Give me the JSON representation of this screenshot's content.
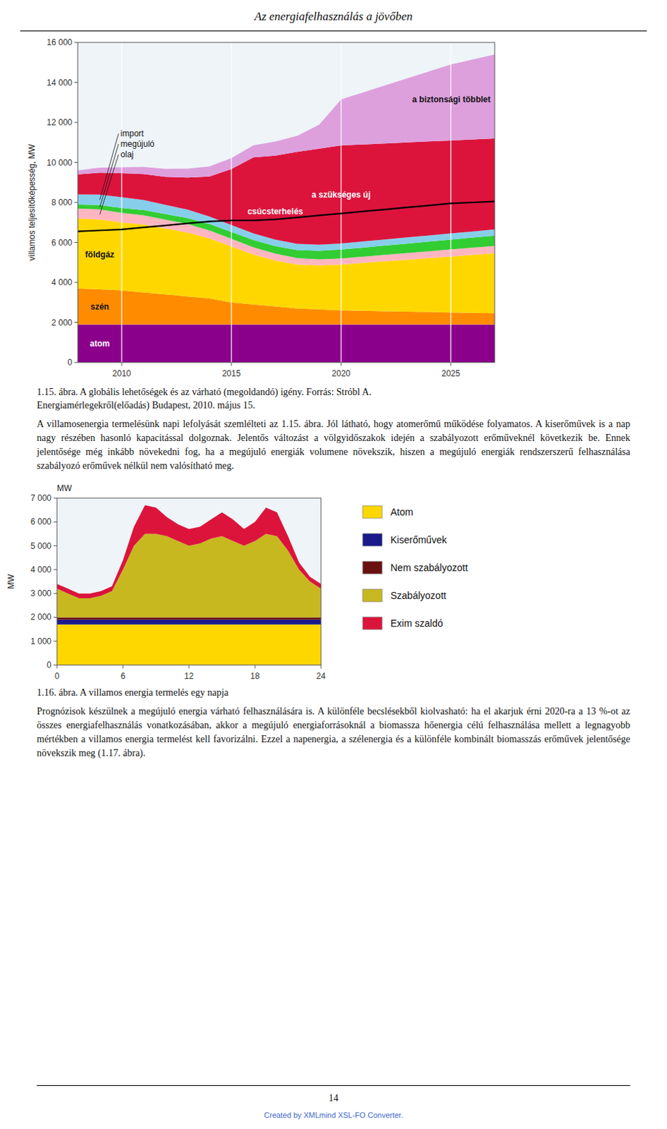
{
  "page_title": "Az energiafelhasználás a jövőben",
  "chart_data": [
    {
      "type": "area",
      "stacked": true,
      "x": [
        2008,
        2009,
        2010,
        2011,
        2012,
        2013,
        2014,
        2015,
        2016,
        2017,
        2018,
        2019,
        2020,
        2021,
        2022,
        2023,
        2024,
        2025,
        2026,
        2027
      ],
      "xlim": [
        2008,
        2027
      ],
      "xticks": [
        2010,
        2015,
        2020,
        2025
      ],
      "ylim": [
        0,
        16000
      ],
      "yticks": [
        0,
        {
          "value": 2000,
          "label": "2 000"
        },
        {
          "value": 4000,
          "label": "4 000"
        },
        {
          "value": 6000,
          "label": "6 000"
        },
        {
          "value": 8000,
          "label": "8 000"
        },
        {
          "value": 10000,
          "label": "10 000"
        },
        {
          "value": 12000,
          "label": "12 000"
        },
        {
          "value": 14000,
          "label": "14 000"
        },
        {
          "value": 16000,
          "label": "16 000"
        }
      ],
      "ylabel": "villamos teljesítőképesség, MW",
      "grid": "x",
      "series": [
        {
          "name": "atom",
          "type": "area",
          "color": "#8B008B",
          "values": [
            1900,
            1900,
            1900,
            1900,
            1900,
            1900,
            1900,
            1900,
            1900,
            1900,
            1900,
            1900,
            1900,
            1900,
            1900,
            1900,
            1900,
            1900,
            1900,
            1900
          ]
        },
        {
          "name": "szén",
          "type": "area",
          "color": "#FF8C00",
          "values": [
            1800,
            1750,
            1700,
            1600,
            1500,
            1400,
            1300,
            1100,
            1000,
            900,
            800,
            750,
            700,
            680,
            660,
            640,
            620,
            600,
            580,
            560
          ]
        },
        {
          "name": "földgáz",
          "type": "area",
          "color": "#FFD700",
          "values": [
            3500,
            3500,
            3400,
            3400,
            3300,
            3200,
            3000,
            2800,
            2500,
            2300,
            2200,
            2200,
            2300,
            2400,
            2500,
            2600,
            2700,
            2800,
            2900,
            3000
          ]
        },
        {
          "name": "olaj",
          "type": "area",
          "color": "#FFB6C1",
          "values": [
            500,
            500,
            480,
            460,
            440,
            420,
            400,
            380,
            360,
            340,
            320,
            310,
            300,
            310,
            320,
            330,
            340,
            350,
            360,
            370
          ]
        },
        {
          "name": "megújuló",
          "type": "area",
          "color": "#32CD32",
          "values": [
            200,
            220,
            240,
            260,
            280,
            300,
            320,
            340,
            360,
            380,
            400,
            420,
            440,
            450,
            460,
            470,
            480,
            490,
            500,
            510
          ]
        },
        {
          "name": "import",
          "type": "area",
          "color": "#87CEEB",
          "values": [
            500,
            520,
            540,
            500,
            460,
            420,
            380,
            350,
            330,
            320,
            310,
            310,
            310,
            310,
            310,
            310,
            310,
            310,
            310,
            310
          ]
        },
        {
          "name": "a szükséges új",
          "type": "area",
          "color": "#DC143C",
          "values": [
            1000,
            1100,
            1200,
            1300,
            1400,
            1600,
            2000,
            2800,
            3800,
            4200,
            4600,
            4800,
            4900,
            4850,
            4800,
            4750,
            4700,
            4650,
            4600,
            4550
          ]
        },
        {
          "name": "a biztonsági többlet",
          "type": "area",
          "color": "#DDA0DD",
          "values": [
            200,
            250,
            300,
            350,
            400,
            450,
            500,
            550,
            600,
            700,
            800,
            1200,
            2300,
            2600,
            2900,
            3200,
            3500,
            3800,
            4000,
            4200
          ]
        },
        {
          "name": "csúcsterhelés",
          "type": "line",
          "color": "#000000",
          "values": [
            6550,
            6600,
            6650,
            6750,
            6850,
            6950,
            7050,
            7100,
            7100,
            7150,
            7250,
            7350,
            7450,
            7550,
            7650,
            7750,
            7850,
            7950,
            8000,
            8050
          ]
        }
      ]
    },
    {
      "type": "area",
      "stacked": true,
      "x": [
        0,
        1,
        2,
        3,
        4,
        5,
        6,
        7,
        8,
        9,
        10,
        11,
        12,
        13,
        14,
        15,
        16,
        17,
        18,
        19,
        20,
        21,
        22,
        23,
        24
      ],
      "xlim": [
        0,
        24
      ],
      "xticks": [
        0,
        6,
        12,
        18,
        24
      ],
      "ylim": [
        0,
        7000
      ],
      "yticks": [
        0,
        {
          "value": 1000,
          "label": "1 000"
        },
        {
          "value": 2000,
          "label": "2 000"
        },
        {
          "value": 3000,
          "label": "3 000"
        },
        {
          "value": 4000,
          "label": "4 000"
        },
        {
          "value": 5000,
          "label": "5 000"
        },
        {
          "value": 6000,
          "label": "6 000"
        },
        {
          "value": 7000,
          "label": "7 000"
        }
      ],
      "ylabel": "MW",
      "legend": "right",
      "series": [
        {
          "name": "Atom",
          "type": "area",
          "color": "#FFD700",
          "values": [
            1700,
            1700,
            1700,
            1700,
            1700,
            1700,
            1700,
            1700,
            1700,
            1700,
            1700,
            1700,
            1700,
            1700,
            1700,
            1700,
            1700,
            1700,
            1700,
            1700,
            1700,
            1700,
            1700,
            1700,
            1700
          ]
        },
        {
          "name": "Kiserőművek",
          "type": "area",
          "color": "#1A1A8C",
          "values": [
            200,
            200,
            200,
            200,
            200,
            200,
            200,
            200,
            200,
            200,
            200,
            200,
            200,
            200,
            200,
            200,
            200,
            200,
            200,
            200,
            200,
            200,
            200,
            200,
            200
          ]
        },
        {
          "name": "Nem szabályozott",
          "type": "area",
          "color": "#6B1010",
          "values": [
            100,
            100,
            100,
            100,
            100,
            100,
            100,
            100,
            100,
            100,
            100,
            100,
            100,
            100,
            100,
            100,
            100,
            100,
            100,
            100,
            100,
            100,
            100,
            100,
            100
          ]
        },
        {
          "name": "Szabályozott",
          "type": "area",
          "color": "#C8B820",
          "values": [
            1200,
            1000,
            800,
            800,
            900,
            1100,
            2000,
            3000,
            3500,
            3500,
            3400,
            3200,
            3000,
            3100,
            3300,
            3400,
            3200,
            3000,
            3200,
            3500,
            3400,
            2800,
            2000,
            1500,
            1200
          ]
        },
        {
          "name": "Exim szaldó",
          "type": "area",
          "color": "#DC143C",
          "values": [
            200,
            200,
            200,
            200,
            200,
            200,
            400,
            800,
            1200,
            1100,
            800,
            700,
            700,
            700,
            800,
            1000,
            900,
            700,
            800,
            1100,
            1000,
            600,
            300,
            200,
            200
          ]
        }
      ]
    }
  ],
  "captions": [
    "1.15. ábra.  A globális lehetőségek és az várható (megoldandó) igény. Forrás: Stróbl A.",
    "Energiamérlegekről(előadás) Budapest, 2010. május 15.",
    "1.16. ábra. A villamos energia termelés egy napja"
  ],
  "paragraphs": [
    "A villamosenergia termelésünk napi lefolyását szemlélteti az 1.15. ábra. Jól látható, hogy atomerőmű működése folyamatos. A kiserőművek is a nap nagy részében hasonló kapacitással dolgoznak. Jelentős változást a völgyidőszakok idején a szabályozott erőműveknél következik be. Ennek jelentősége még inkább növekedni fog, ha a megújuló energiák volumene növekszik, hiszen a megújuló energiák rendszerszerű felhasználása szabályozó erőművek nélkül nem valósítható meg.",
    "Prognózisok készülnek a megújuló energia várható felhasználására is. A különféle becslésekből kiolvasható: ha el akarjuk érni 2020-ra a 13 %-ot az összes energiafelhasználás vonatkozásában, akkor a megújuló energiaforrásoknál a biomassza hőenergia célú felhasználása mellett a legnagyobb mértékben a villamos energia termelést kell favorizálni. Ezzel a napenergia, a szélenergia és a különféle kombinált biomasszás erőművek jelentősége növekszik meg (1.17. ábra)."
  ],
  "footer": "14",
  "footer_note": "Created by XMLmind XSL-FO Converter."
}
